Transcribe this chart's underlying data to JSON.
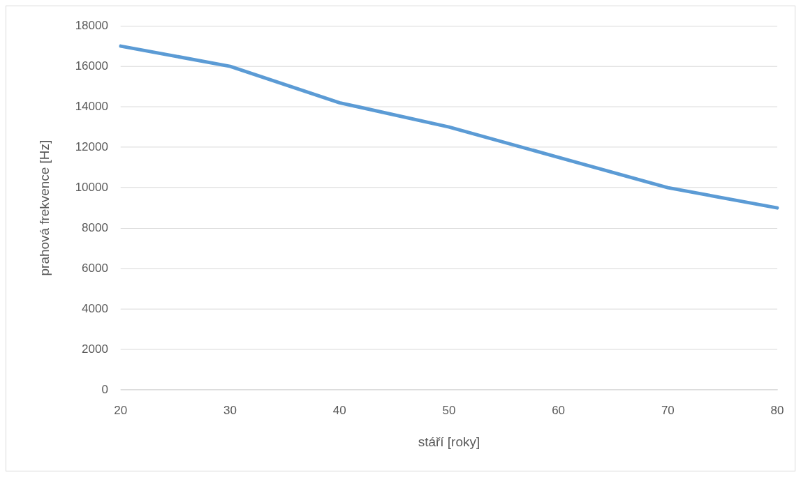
{
  "chart_data": {
    "type": "line",
    "xlabel": "stáří [roky]",
    "ylabel": "prahová frekvence [Hz]",
    "categories": [
      "20",
      "30",
      "40",
      "50",
      "60",
      "70",
      "80"
    ],
    "series": [
      {
        "color": "#5b9bd5",
        "values": [
          17000,
          16000,
          14200,
          13000,
          11500,
          10000,
          9000
        ]
      }
    ],
    "ylim": [
      0,
      18000
    ],
    "yticks": [
      0,
      2000,
      4000,
      6000,
      8000,
      10000,
      12000,
      14000,
      16000,
      18000
    ],
    "grid": "y",
    "legend": false,
    "marker": "none",
    "line_style": "solid"
  }
}
